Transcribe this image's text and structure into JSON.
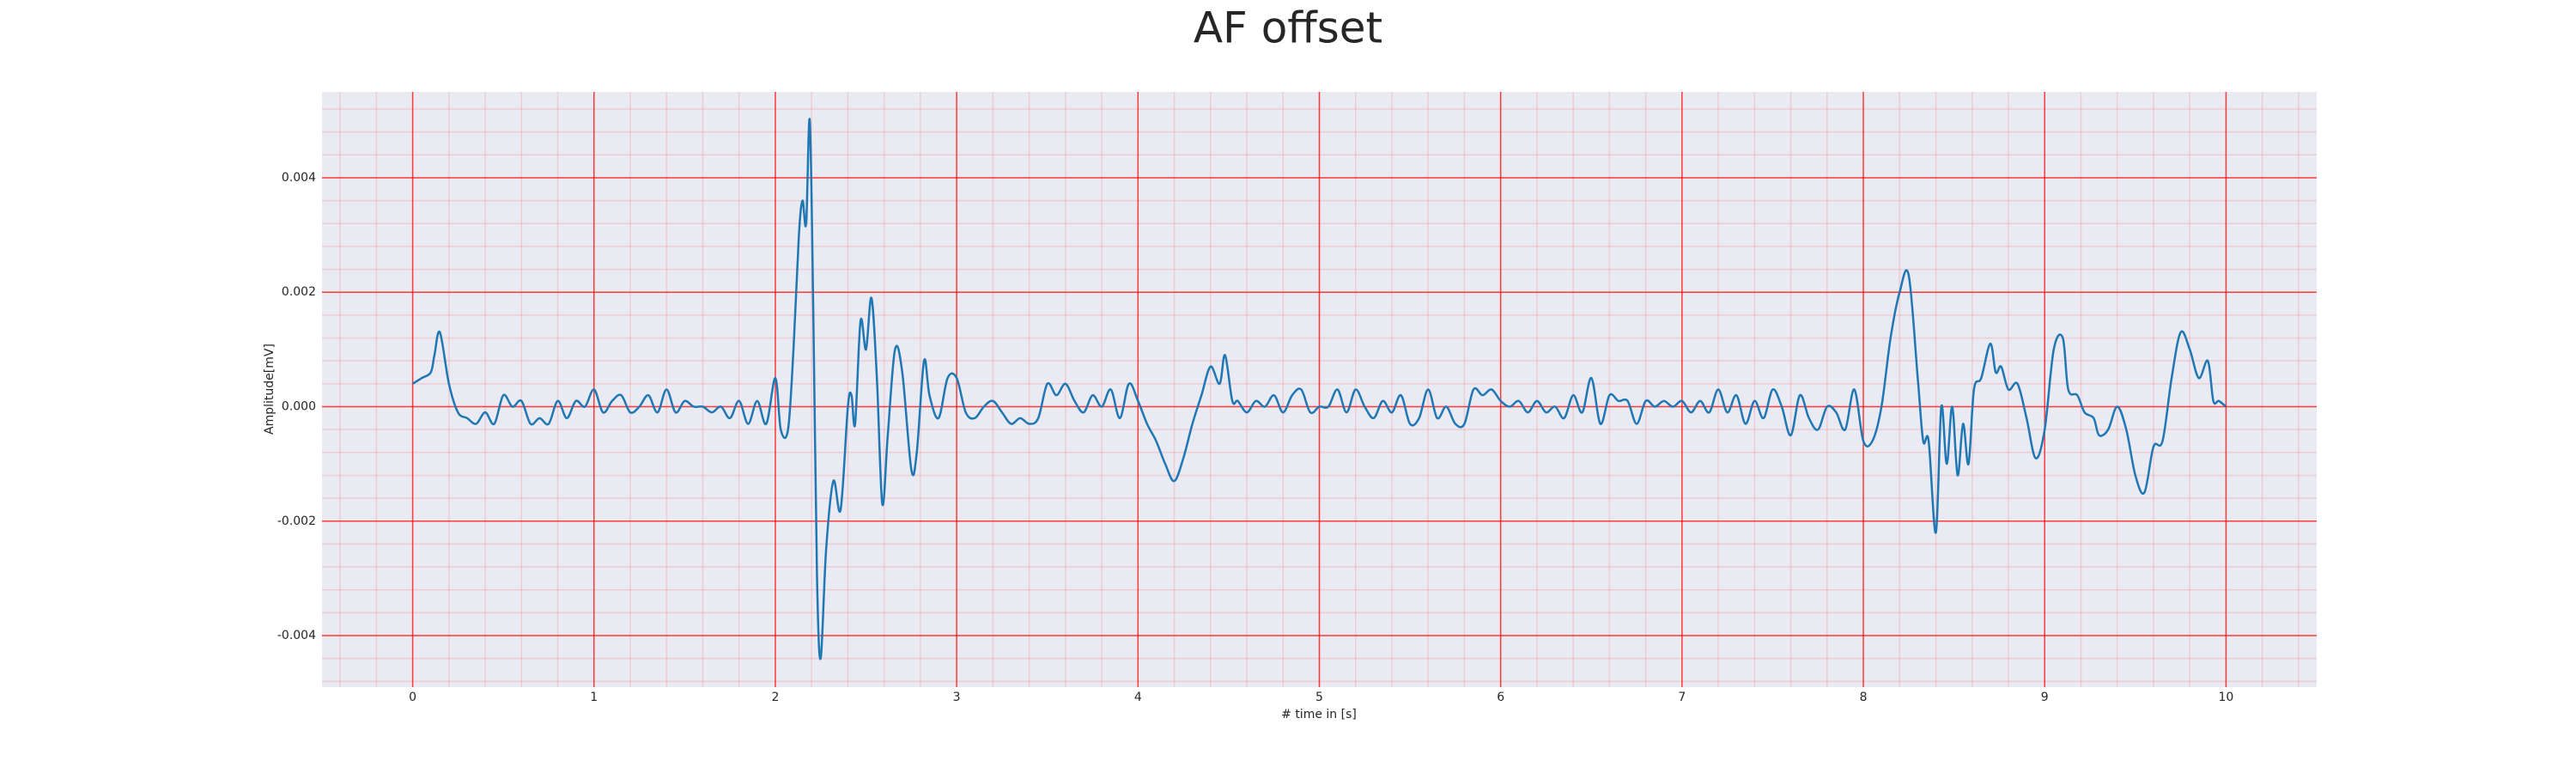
{
  "chart_data": {
    "type": "line",
    "title": "AF offset",
    "xlabel": "# time in [s]",
    "ylabel": "Amplitude[mV]",
    "color": "#1f77b4",
    "grid": true,
    "grid_color": "#ff0000",
    "background": "#eaeaf2",
    "xlim": [
      -0.5,
      10.5
    ],
    "ylim": [
      -0.0049,
      0.0055
    ],
    "xticks": [
      0,
      1,
      2,
      3,
      4,
      5,
      6,
      7,
      8,
      9,
      10
    ],
    "yticks": [
      -0.004,
      -0.002,
      {
        "value": 0,
        "label": "0.000"
      },
      0.002,
      0.004
    ],
    "x": [
      0,
      0.05,
      0.1,
      0.12,
      0.15,
      0.2,
      0.25,
      0.3,
      0.35,
      0.4,
      0.45,
      0.5,
      0.55,
      0.6,
      0.65,
      0.7,
      0.75,
      0.8,
      0.85,
      0.9,
      0.95,
      1,
      1.05,
      1.1,
      1.15,
      1.2,
      1.25,
      1.3,
      1.35,
      1.4,
      1.45,
      1.5,
      1.55,
      1.6,
      1.65,
      1.7,
      1.75,
      1.8,
      1.85,
      1.9,
      1.95,
      2,
      2.03,
      2.07,
      2.1,
      2.13,
      2.15,
      2.17,
      2.19,
      2.21,
      2.23,
      2.25,
      2.28,
      2.32,
      2.36,
      2.4,
      2.42,
      2.44,
      2.47,
      2.5,
      2.53,
      2.56,
      2.59,
      2.62,
      2.66,
      2.7,
      2.75,
      2.78,
      2.82,
      2.85,
      2.9,
      2.95,
      3,
      3.05,
      3.1,
      3.15,
      3.2,
      3.25,
      3.3,
      3.35,
      3.4,
      3.45,
      3.5,
      3.55,
      3.6,
      3.65,
      3.7,
      3.75,
      3.8,
      3.85,
      3.9,
      3.95,
      4,
      4.05,
      4.1,
      4.15,
      4.2,
      4.25,
      4.3,
      4.35,
      4.4,
      4.45,
      4.48,
      4.52,
      4.55,
      4.6,
      4.65,
      4.7,
      4.75,
      4.8,
      4.85,
      4.9,
      4.95,
      5,
      5.05,
      5.1,
      5.15,
      5.2,
      5.25,
      5.3,
      5.35,
      5.4,
      5.45,
      5.5,
      5.55,
      5.6,
      5.65,
      5.7,
      5.75,
      5.8,
      5.85,
      5.9,
      5.95,
      6,
      6.05,
      6.1,
      6.15,
      6.2,
      6.25,
      6.3,
      6.35,
      6.4,
      6.45,
      6.5,
      6.55,
      6.6,
      6.65,
      6.7,
      6.75,
      6.8,
      6.85,
      6.9,
      6.95,
      7,
      7.05,
      7.1,
      7.15,
      7.2,
      7.25,
      7.3,
      7.35,
      7.4,
      7.45,
      7.5,
      7.55,
      7.6,
      7.65,
      7.7,
      7.75,
      7.8,
      7.85,
      7.9,
      7.95,
      8,
      8.05,
      8.1,
      8.15,
      8.2,
      8.25,
      8.3,
      8.33,
      8.36,
      8.4,
      8.43,
      8.46,
      8.49,
      8.52,
      8.55,
      8.58,
      8.61,
      8.65,
      8.7,
      8.73,
      8.76,
      8.8,
      8.85,
      8.9,
      8.95,
      9,
      9.05,
      9.1,
      9.13,
      9.18,
      9.22,
      9.27,
      9.3,
      9.35,
      9.4,
      9.45,
      9.5,
      9.55,
      9.6,
      9.65,
      9.7,
      9.75,
      9.8,
      9.85,
      9.9,
      9.93,
      9.96,
      10
    ],
    "values": [
      0.0004,
      0.0005,
      0.0006,
      0.0009,
      0.0013,
      0.0004,
      -0.0001,
      -0.0002,
      -0.0003,
      -0.0001,
      -0.0003,
      0.0002,
      0,
      0.0001,
      -0.0003,
      -0.0002,
      -0.0003,
      0.0001,
      -0.0002,
      0.0001,
      0,
      0.0003,
      -0.0001,
      0.0001,
      0.0002,
      -0.0001,
      0,
      0.0002,
      -0.0001,
      0.0003,
      -0.0001,
      0.0001,
      0,
      0,
      -0.0001,
      0,
      -0.0002,
      0.0001,
      -0.0003,
      0.0001,
      -0.0003,
      0.0005,
      -0.0004,
      -0.0004,
      0.001,
      0.003,
      0.0036,
      0.0032,
      0.005,
      0.0015,
      -0.003,
      -0.0044,
      -0.0025,
      -0.0013,
      -0.0018,
      0,
      0.0002,
      -0.0003,
      0.0015,
      0.001,
      0.0019,
      0.0005,
      -0.0017,
      -0.0005,
      0.001,
      0.0006,
      -0.0011,
      -0.0008,
      0.0008,
      0.0002,
      -0.0002,
      0.0005,
      0.0005,
      -0.0001,
      -0.0002,
      0,
      0.0001,
      -0.0001,
      -0.0003,
      -0.0002,
      -0.0003,
      -0.0002,
      0.0004,
      0.0002,
      0.0004,
      0.0001,
      -0.0001,
      0.0002,
      0,
      0.0003,
      -0.0002,
      0.0004,
      0.0001,
      -0.0003,
      -0.0006,
      -0.001,
      -0.0013,
      -0.0009,
      -0.0003,
      0.0002,
      0.0007,
      0.0004,
      0.0009,
      0.0001,
      0.0001,
      -0.0001,
      0.0001,
      0,
      0.0002,
      -0.0001,
      0.0002,
      0.0003,
      -0.0001,
      0,
      0,
      0.0003,
      -0.0001,
      0.0003,
      0,
      -0.0002,
      0.0001,
      -0.0001,
      0.0002,
      -0.0003,
      -0.0002,
      0.0003,
      -0.0002,
      0,
      -0.0003,
      -0.0003,
      0.0003,
      0.0002,
      0.0003,
      0.0001,
      0,
      0.0001,
      -0.0001,
      0.0001,
      -0.0001,
      0,
      -0.0002,
      0.0002,
      -0.0001,
      0.0005,
      -0.0003,
      0.0002,
      0.0001,
      0.0001,
      -0.0003,
      0.0001,
      0,
      0.0001,
      0,
      0.0001,
      -0.0001,
      0.0001,
      -0.0001,
      0.0003,
      -0.0001,
      0.0002,
      -0.0003,
      0.0001,
      -0.0002,
      0.0003,
      0,
      -0.0005,
      0.0002,
      -0.0002,
      -0.0004,
      0,
      -0.0001,
      -0.0004,
      0.0003,
      -0.0006,
      -0.0006,
      0,
      0.0012,
      0.002,
      0.0023,
      0.0005,
      -0.0006,
      -0.0006,
      -0.0022,
      0,
      -0.001,
      0,
      -0.0012,
      -0.0003,
      -0.001,
      0.0003,
      0.0005,
      0.0011,
      0.0006,
      0.0007,
      0.0003,
      0.0004,
      -0.0002,
      -0.0009,
      -0.0004,
      0.001,
      0.0012,
      0.0003,
      0.0002,
      -0.0001,
      -0.0002,
      -0.0005,
      -0.0004,
      0,
      -0.0004,
      -0.0012,
      -0.0015,
      -0.0007,
      -0.0006,
      0.0005,
      0.0013,
      0.001,
      0.0005,
      0.0008,
      0.0001,
      0.0001,
      0
    ]
  }
}
